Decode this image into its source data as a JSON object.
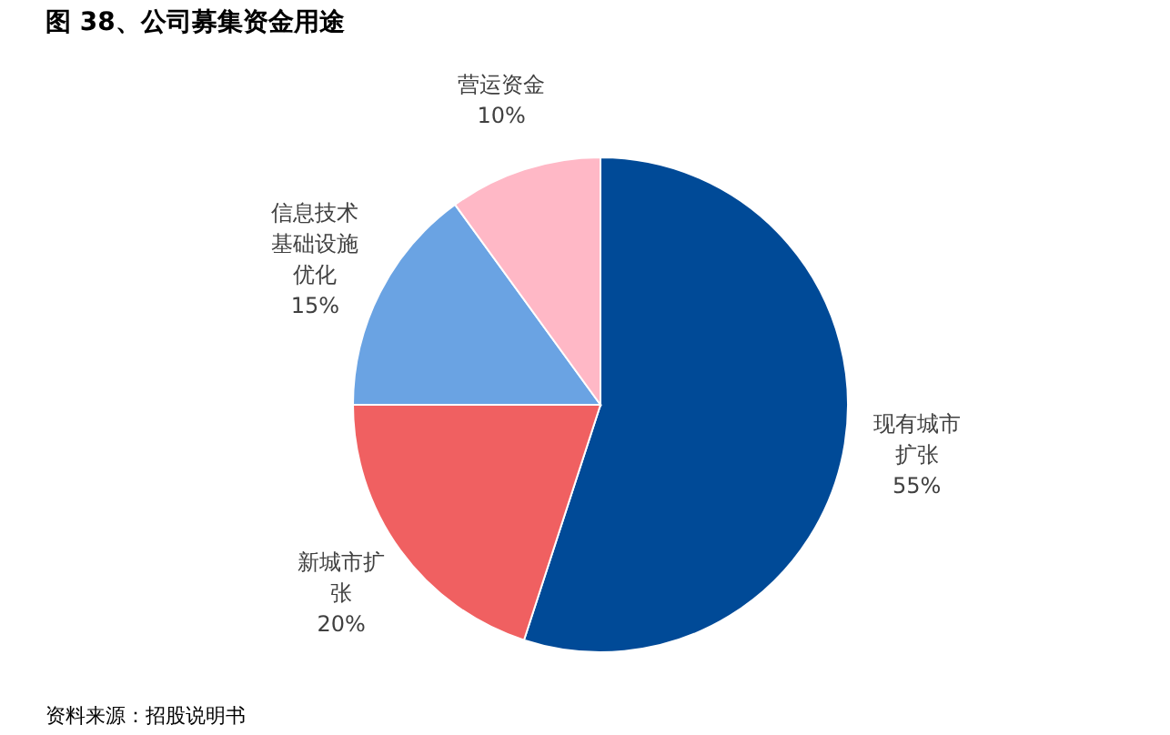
{
  "chart_data": {
    "type": "pie",
    "title": "图 38、公司募集资金用途",
    "categories": [
      "现有城市扩张",
      "新城市扩张",
      "信息技术基础设施优化",
      "营运资金"
    ],
    "values": [
      55,
      20,
      15,
      10
    ],
    "colors": [
      "#004a97",
      "#f06061",
      "#6aa3e3",
      "#ffb8c6"
    ],
    "value_labels": [
      "55%",
      "20%",
      "15%",
      "10%"
    ],
    "legend": false,
    "annotations": [
      "资料来源：招股说明书"
    ]
  }
}
